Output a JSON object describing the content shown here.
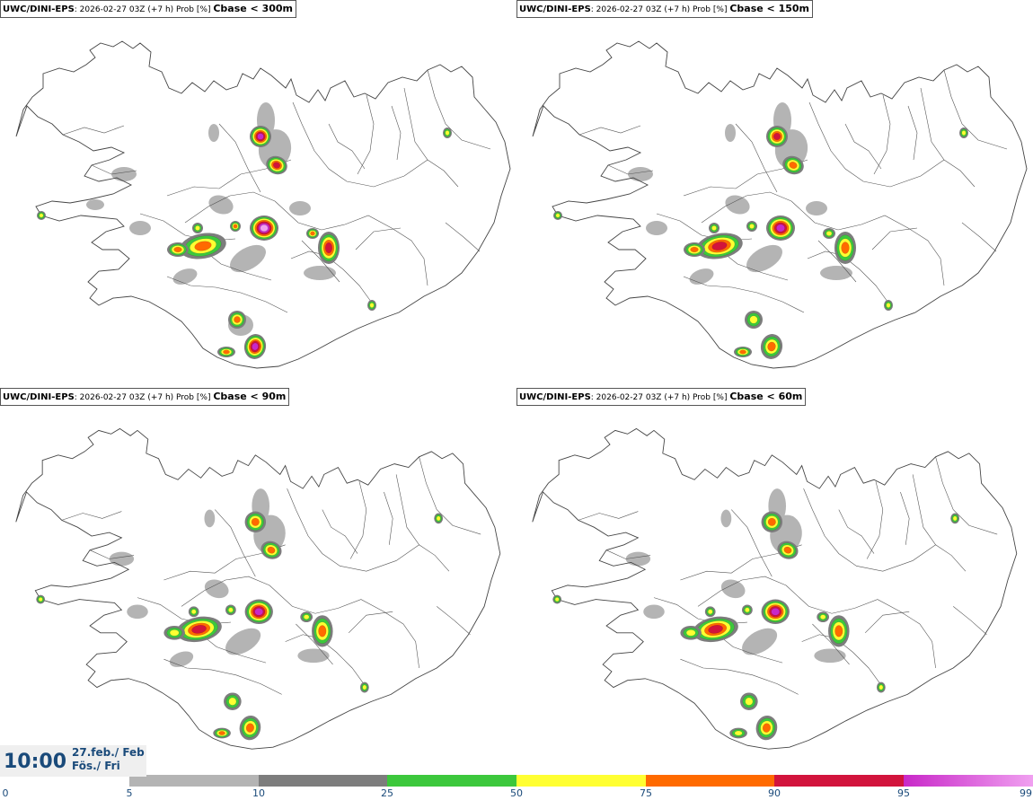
{
  "panels": [
    {
      "source": "UWC/DINI-EPS",
      "run": "2026-02-27 03Z (+7 h) Prob [%]",
      "criterion": "Cbase < 300m"
    },
    {
      "source": "UWC/DINI-EPS",
      "run": "2026-02-27 03Z (+7 h) Prob [%]",
      "criterion": "Cbase < 150m"
    },
    {
      "source": "UWC/DINI-EPS",
      "run": "2026-02-27 03Z (+7 h) Prob [%]",
      "criterion": "Cbase < 90m"
    },
    {
      "source": "UWC/DINI-EPS",
      "run": "2026-02-27 03Z (+7 h) Prob [%]",
      "criterion": "Cbase < 60m"
    }
  ],
  "valid_time": {
    "time": "10:00",
    "date_line": "27.feb./ Feb",
    "day_line": "Fös./ Fri"
  },
  "colors": {
    "c5": "#b4b4b4",
    "c10": "#7d7d7d",
    "c25": "#3cc83c",
    "c50": "#ffff32",
    "c75": "#ff6a00",
    "c90": "#d2143c",
    "c95": "#c828c8",
    "c99": "#f0a0f0"
  },
  "colorbar": {
    "ticks": [
      "0",
      "5",
      "10",
      "25",
      "50",
      "75",
      "90",
      "95",
      "99"
    ],
    "bins": [
      {
        "from": 5,
        "to": 10,
        "color": "#b4b4b4"
      },
      {
        "from": 10,
        "to": 25,
        "color": "#7d7d7d"
      },
      {
        "from": 25,
        "to": 50,
        "color": "#3cc83c"
      },
      {
        "from": 50,
        "to": 75,
        "color": "#ffff32"
      },
      {
        "from": 75,
        "to": 90,
        "color": "#ff6a00"
      },
      {
        "from": 90,
        "to": 95,
        "color": "#d2143c"
      },
      {
        "from": 95,
        "to": 99,
        "color": "#c828c8"
      },
      {
        "from": 99,
        "to": 100,
        "color": "#f0a0f0"
      }
    ]
  },
  "fields": [
    [
      {
        "lvl": 5,
        "value": 99
      },
      {
        "lvl": 2,
        "value": 75
      },
      {
        "lvl": 4,
        "value": 95
      },
      {
        "lvl": 3,
        "value": 75
      },
      {
        "lvl": 3,
        "value": 75
      },
      {
        "lvl": 2,
        "value": 50
      },
      {
        "lvl": 2,
        "value": 50
      },
      {
        "lvl": 4,
        "value": 95
      },
      {
        "lvl": 2,
        "value": 50
      },
      {
        "lvl": 2,
        "value": 50
      },
      {
        "lvl": 2,
        "value": 50
      },
      {
        "lvl": 1,
        "value": 25
      },
      {
        "lvl": 1,
        "value": 25
      },
      {
        "lvl": 1,
        "value": 25
      },
      {
        "lvl": 1,
        "value": 25
      }
    ],
    [
      {
        "lvl": 4,
        "value": 95
      },
      {
        "lvl": 3,
        "value": 90
      },
      {
        "lvl": 2,
        "value": 75
      },
      {
        "lvl": 2,
        "value": 75
      },
      {
        "lvl": 2,
        "value": 50
      },
      {
        "lvl": 2,
        "value": 50
      },
      {
        "lvl": 2,
        "value": 50
      },
      {
        "lvl": 3,
        "value": 75
      },
      {
        "lvl": 1,
        "value": 50
      },
      {
        "lvl": 1,
        "value": 25
      },
      {
        "lvl": 1,
        "value": 25
      },
      {
        "lvl": 1,
        "value": 25
      },
      {
        "lvl": 1,
        "value": 25
      },
      {
        "lvl": 1,
        "value": 25
      },
      {
        "lvl": 1,
        "value": 25
      }
    ],
    [
      {
        "lvl": 4,
        "value": 95
      },
      {
        "lvl": 3,
        "value": 90
      },
      {
        "lvl": 2,
        "value": 75
      },
      {
        "lvl": 2,
        "value": 50
      },
      {
        "lvl": 2,
        "value": 50
      },
      {
        "lvl": 2,
        "value": 50
      },
      {
        "lvl": 1,
        "value": 50
      },
      {
        "lvl": 2,
        "value": 75
      },
      {
        "lvl": 1,
        "value": 25
      },
      {
        "lvl": 1,
        "value": 25
      },
      {
        "lvl": 1,
        "value": 25
      },
      {
        "lvl": 1,
        "value": 25
      },
      {
        "lvl": 1,
        "value": 25
      },
      {
        "lvl": 1,
        "value": 25
      },
      {
        "lvl": 1,
        "value": 25
      }
    ],
    [
      {
        "lvl": 4,
        "value": 95
      },
      {
        "lvl": 3,
        "value": 75
      },
      {
        "lvl": 2,
        "value": 50
      },
      {
        "lvl": 2,
        "value": 50
      },
      {
        "lvl": 2,
        "value": 50
      },
      {
        "lvl": 1,
        "value": 50
      },
      {
        "lvl": 1,
        "value": 50
      },
      {
        "lvl": 2,
        "value": 75
      },
      {
        "lvl": 1,
        "value": 25
      },
      {
        "lvl": 1,
        "value": 25
      },
      {
        "lvl": 1,
        "value": 25
      },
      {
        "lvl": 1,
        "value": 25
      },
      {
        "lvl": 1,
        "value": 25
      },
      {
        "lvl": 1,
        "value": 25
      },
      {
        "lvl": 1,
        "value": 25
      }
    ]
  ]
}
